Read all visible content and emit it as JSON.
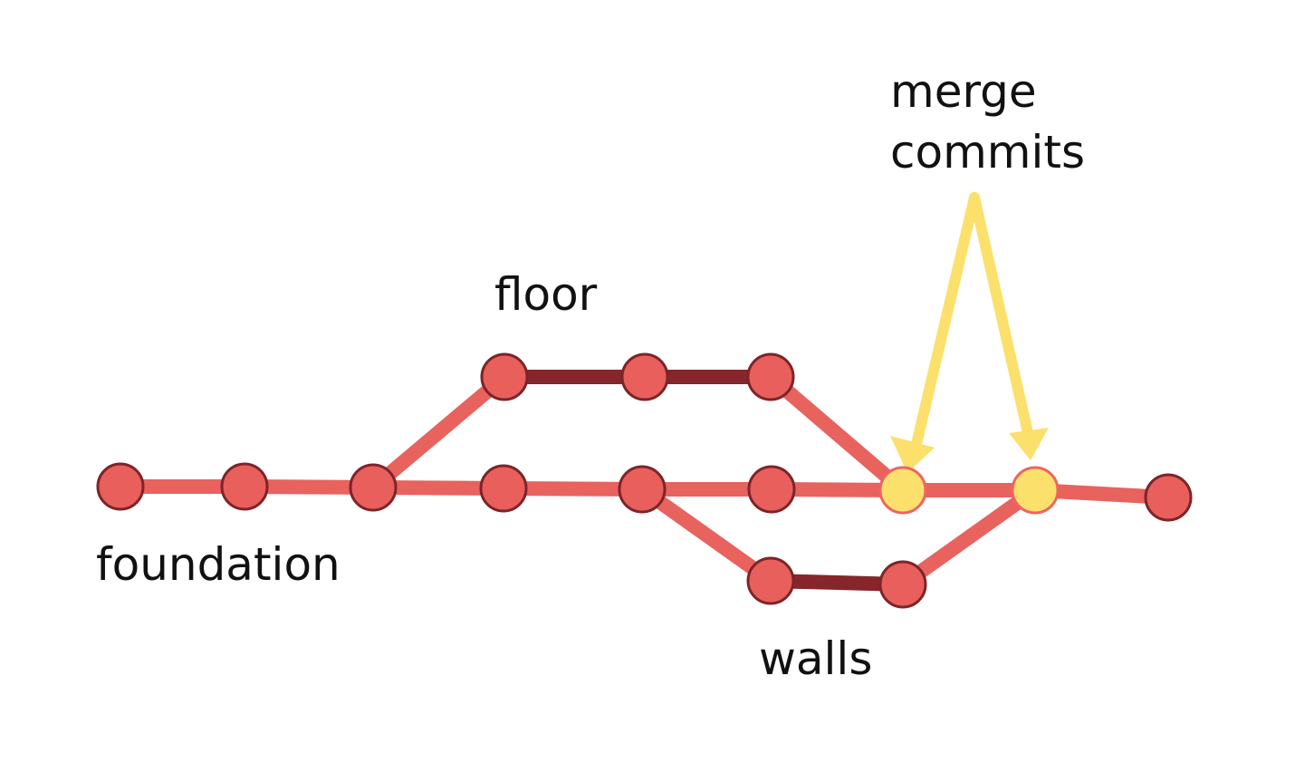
{
  "labels": {
    "merge_line1": "merge",
    "merge_line2": "commits",
    "floor": "floor",
    "foundation": "foundation",
    "walls": "walls"
  },
  "colors": {
    "commit_fill": "#e85f5c",
    "commit_stroke": "#7d2428",
    "main_line": "#e8625e",
    "branch_line": "#86262a",
    "merge_commit_fill": "#fbe06c",
    "merge_commit_stroke": "#ee6461",
    "arrow": "#fbe06c",
    "text": "#111111"
  },
  "graph": {
    "branches": [
      "foundation",
      "floor",
      "walls"
    ],
    "commits": {
      "foundation": 9,
      "floor": 3,
      "walls": 2
    },
    "merge_commits": 2
  }
}
